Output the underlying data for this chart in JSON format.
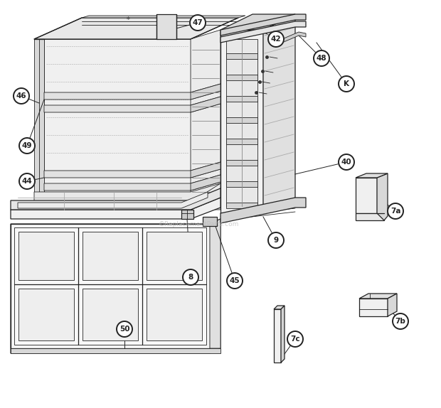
{
  "bg_color": "#ffffff",
  "line_color": "#222222",
  "lw_main": 1.3,
  "lw_thin": 0.6,
  "lw_med": 0.9,
  "watermark_text": "©ReplacementParts.com",
  "watermark_color": "#bbbbbb",
  "figsize": [
    6.2,
    5.74
  ],
  "dpi": 100,
  "labels": [
    [
      "47",
      278,
      32
    ],
    [
      "42",
      388,
      55
    ],
    [
      "48",
      452,
      82
    ],
    [
      "K",
      487,
      118
    ],
    [
      "46",
      30,
      135
    ],
    [
      "40",
      487,
      228
    ],
    [
      "49",
      38,
      205
    ],
    [
      "44",
      38,
      255
    ],
    [
      "9",
      388,
      338
    ],
    [
      "8",
      268,
      390
    ],
    [
      "45",
      330,
      395
    ],
    [
      "50",
      175,
      463
    ],
    [
      "7a",
      556,
      297
    ],
    [
      "7b",
      563,
      452
    ],
    [
      "7c",
      415,
      477
    ]
  ]
}
